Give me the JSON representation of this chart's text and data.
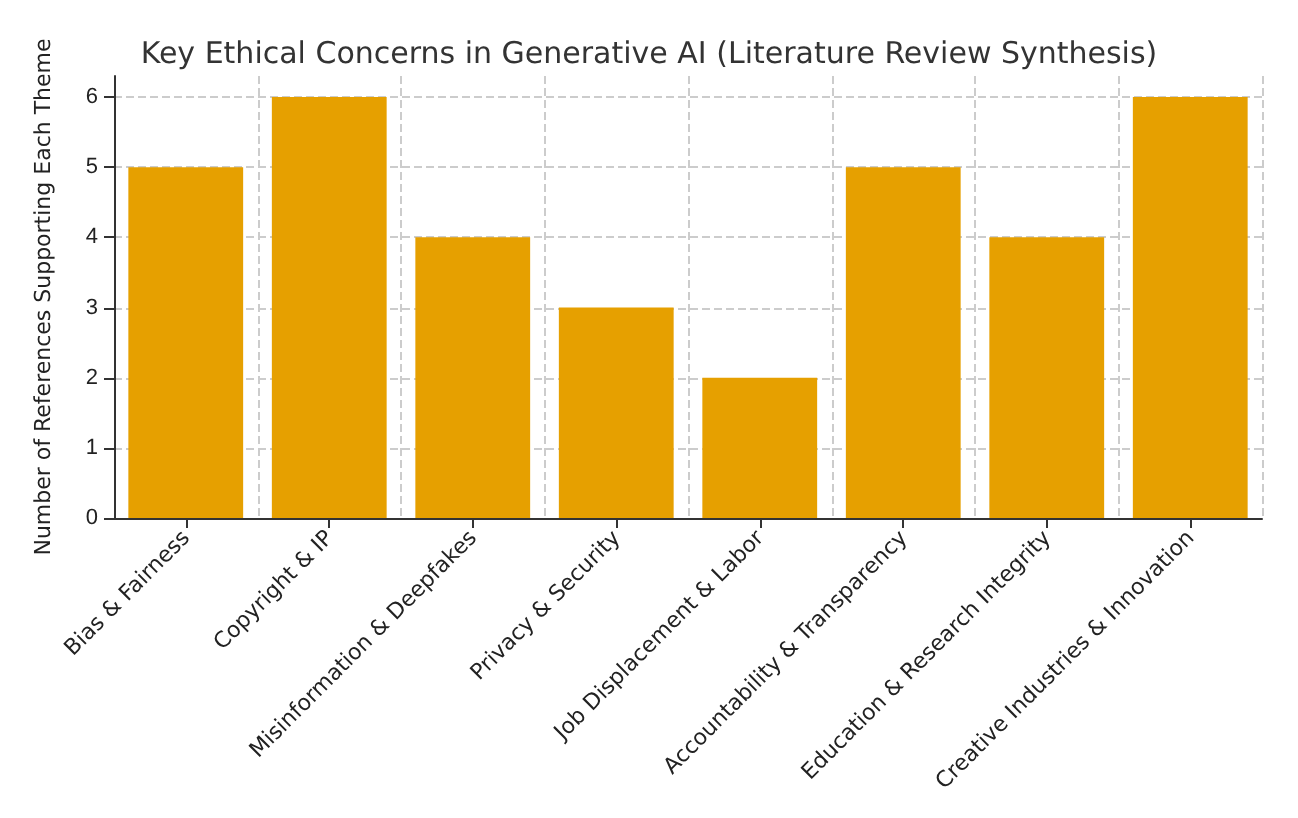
{
  "chart_data": {
    "type": "bar",
    "title": "Key Ethical Concerns in Generative AI (Literature Review Synthesis)",
    "ylabel": "Number of References Supporting Each Theme",
    "categories": [
      "Bias & Fairness",
      "Copyright & IP",
      "Misinformation & Deepfakes",
      "Privacy & Security",
      "Job Displacement & Labor",
      "Accountability & Transparency",
      "Education & Research Integrity",
      "Creative Industries & Innovation"
    ],
    "values": [
      5,
      6,
      4,
      3,
      2,
      5,
      4,
      6
    ],
    "color": "#e6a000",
    "ylim": [
      0,
      6.3
    ],
    "yticks": [
      0,
      1,
      2,
      3,
      4,
      5,
      6
    ],
    "grid": true
  }
}
